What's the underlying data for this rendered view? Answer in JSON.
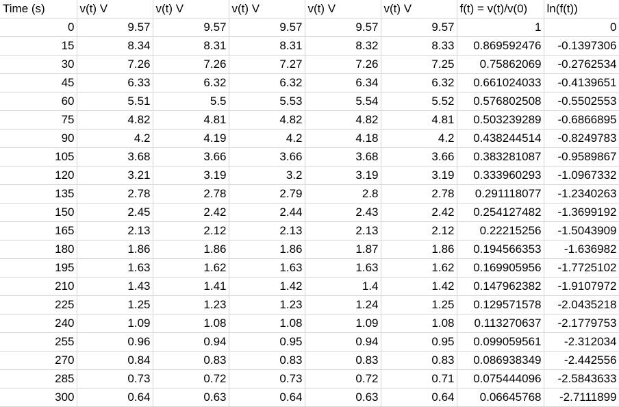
{
  "sheet": {
    "headers": [
      "Time (s)",
      "v(t) V",
      "v(t) V",
      "v(t) V",
      "v(t) V",
      "v(t) V",
      "f(t) = v(t)/v(0)",
      "ln(f(t))"
    ],
    "rows": [
      [
        "0",
        "9.57",
        "9.57",
        "9.57",
        "9.57",
        "9.57",
        "1",
        "0"
      ],
      [
        "15",
        "8.34",
        "8.31",
        "8.31",
        "8.32",
        "8.33",
        "0.869592476",
        "-0.1397306"
      ],
      [
        "30",
        "7.26",
        "7.26",
        "7.27",
        "7.26",
        "7.25",
        "0.75862069",
        "-0.2762534"
      ],
      [
        "45",
        "6.33",
        "6.32",
        "6.32",
        "6.34",
        "6.32",
        "0.661024033",
        "-0.4139651"
      ],
      [
        "60",
        "5.51",
        "5.5",
        "5.53",
        "5.54",
        "5.52",
        "0.576802508",
        "-0.5502553"
      ],
      [
        "75",
        "4.82",
        "4.81",
        "4.82",
        "4.82",
        "4.81",
        "0.503239289",
        "-0.6866895"
      ],
      [
        "90",
        "4.2",
        "4.19",
        "4.2",
        "4.18",
        "4.2",
        "0.438244514",
        "-0.8249783"
      ],
      [
        "105",
        "3.68",
        "3.66",
        "3.66",
        "3.68",
        "3.66",
        "0.383281087",
        "-0.9589867"
      ],
      [
        "120",
        "3.21",
        "3.19",
        "3.2",
        "3.19",
        "3.19",
        "0.333960293",
        "-1.0967332"
      ],
      [
        "135",
        "2.78",
        "2.78",
        "2.79",
        "2.8",
        "2.78",
        "0.291118077",
        "-1.2340263"
      ],
      [
        "150",
        "2.45",
        "2.42",
        "2.44",
        "2.43",
        "2.42",
        "0.254127482",
        "-1.3699192"
      ],
      [
        "165",
        "2.13",
        "2.12",
        "2.13",
        "2.13",
        "2.12",
        "0.22215256",
        "-1.5043909"
      ],
      [
        "180",
        "1.86",
        "1.86",
        "1.86",
        "1.87",
        "1.86",
        "0.194566353",
        "-1.636982"
      ],
      [
        "195",
        "1.63",
        "1.62",
        "1.63",
        "1.63",
        "1.62",
        "0.169905956",
        "-1.7725102"
      ],
      [
        "210",
        "1.43",
        "1.41",
        "1.42",
        "1.4",
        "1.42",
        "0.147962382",
        "-1.9107972"
      ],
      [
        "225",
        "1.25",
        "1.23",
        "1.23",
        "1.24",
        "1.25",
        "0.129571578",
        "-2.0435218"
      ],
      [
        "240",
        "1.09",
        "1.08",
        "1.08",
        "1.09",
        "1.08",
        "0.113270637",
        "-2.1779753"
      ],
      [
        "255",
        "0.96",
        "0.94",
        "0.95",
        "0.94",
        "0.95",
        "0.099059561",
        "-2.312034"
      ],
      [
        "270",
        "0.84",
        "0.83",
        "0.83",
        "0.83",
        "0.83",
        "0.086938349",
        "-2.442556"
      ],
      [
        "285",
        "0.73",
        "0.72",
        "0.73",
        "0.72",
        "0.71",
        "0.075444096",
        "-2.5843633"
      ],
      [
        "300",
        "0.64",
        "0.63",
        "0.64",
        "0.63",
        "0.64",
        "0.06645768",
        "-2.7111899"
      ]
    ],
    "colors": {
      "gridline": "#d4d4d4",
      "text": "#000000",
      "background": "#ffffff"
    }
  }
}
